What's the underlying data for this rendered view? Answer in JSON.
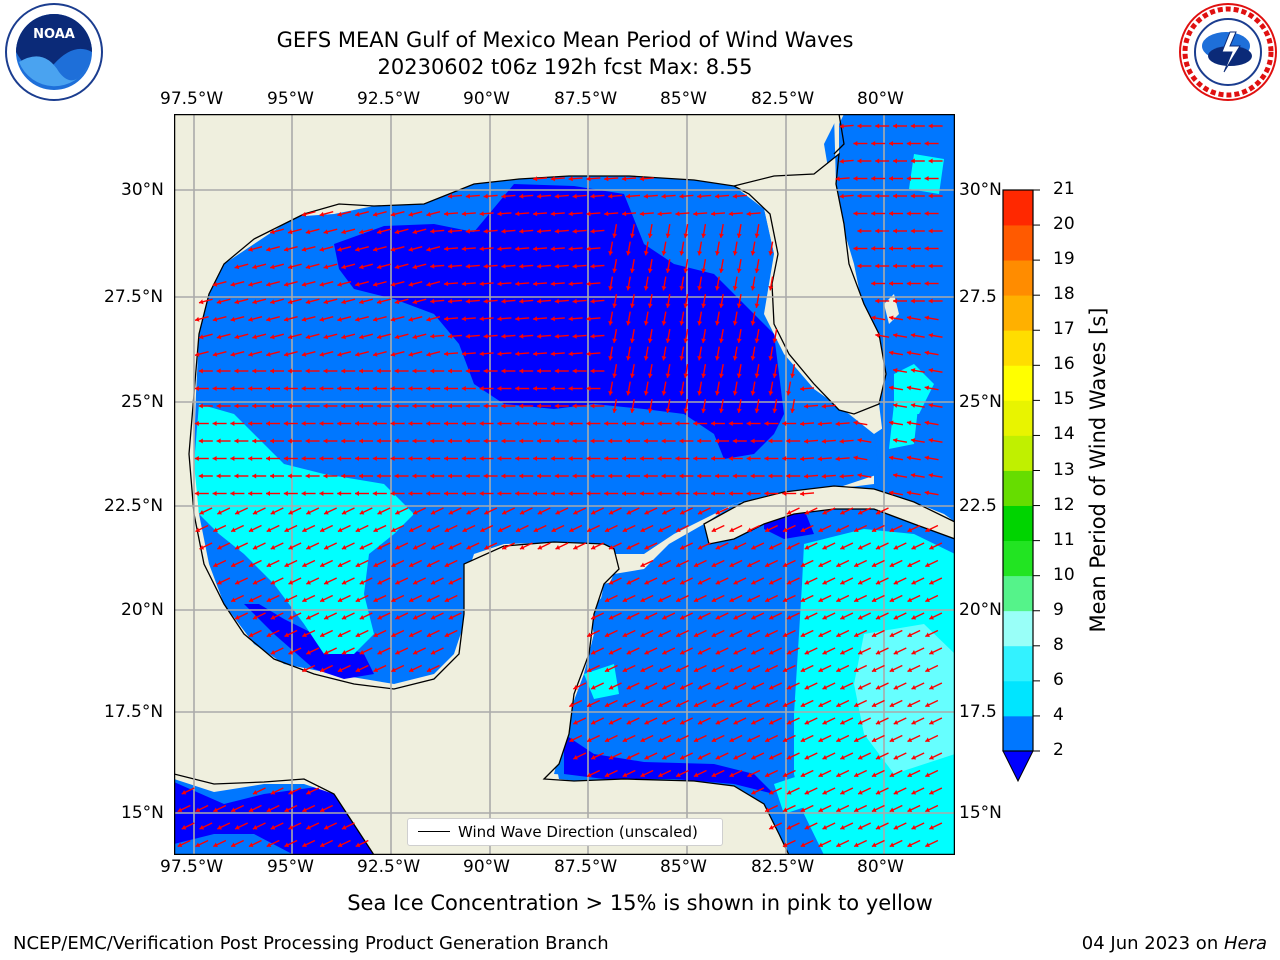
{
  "title": {
    "line1": "GEFS MEAN Gulf of Mexico Mean Period of Wind Waves",
    "line2": "20230602 t06z 192h fcst   Max: 8.55"
  },
  "logos": {
    "left": {
      "name": "NOAA",
      "ring_text": "NATIONAL OCEANIC AND ATMOSPHERIC ADMINISTRATION · U.S. DEPARTMENT OF COMMERCE"
    },
    "right": {
      "name": "National Weather Service",
      "ring_text": "NATIONAL WEATHER SERVICE"
    }
  },
  "axes": {
    "lon_labels": [
      "97.5°W",
      "95°W",
      "92.5°W",
      "90°W",
      "87.5°W",
      "85°W",
      "82.5°W",
      "80°W"
    ],
    "lat_labels": [
      "30°N",
      "27.5°N",
      "25°N",
      "22.5°N",
      "20°N",
      "17.5°N",
      "15°N"
    ],
    "lat_labels_right": [
      "30°N",
      "27.5",
      "25°N",
      "22.5",
      "20°N",
      "17.5",
      "15°N"
    ]
  },
  "legend": {
    "label": "Wind Wave Direction (unscaled)"
  },
  "colorbar": {
    "title": "Mean Period of Wind Waves [s]",
    "ticks": [
      "2",
      "4",
      "6",
      "8",
      "9",
      "10",
      "11",
      "12",
      "13",
      "14",
      "15",
      "16",
      "17",
      "18",
      "19",
      "20",
      "21"
    ],
    "colors": [
      "#0077ff",
      "#00e5ff",
      "#33f2ff",
      "#99fff8",
      "#55f38a",
      "#22e422",
      "#00d400",
      "#66dd00",
      "#c0f000",
      "#e8f400",
      "#ffff00",
      "#ffdd00",
      "#ffb000",
      "#ff8c00",
      "#ff5a00",
      "#ff2800"
    ],
    "extend_color": "#0000ff"
  },
  "colors": {
    "land": "#efefde",
    "ocean_2": "#0077ff",
    "ocean_low": "#0000ff",
    "ocean_4": "#00ffff",
    "ocean_6": "#66ffff",
    "arrow": "#ff0000"
  },
  "footer": {
    "sea_ice_note": "Sea Ice Concentration > 15% is shown in pink to yellow",
    "credit": "NCEP/EMC/Verification Post Processing Product Generation Branch",
    "date": "04 Jun 2023 on ",
    "host": "Hera"
  }
}
